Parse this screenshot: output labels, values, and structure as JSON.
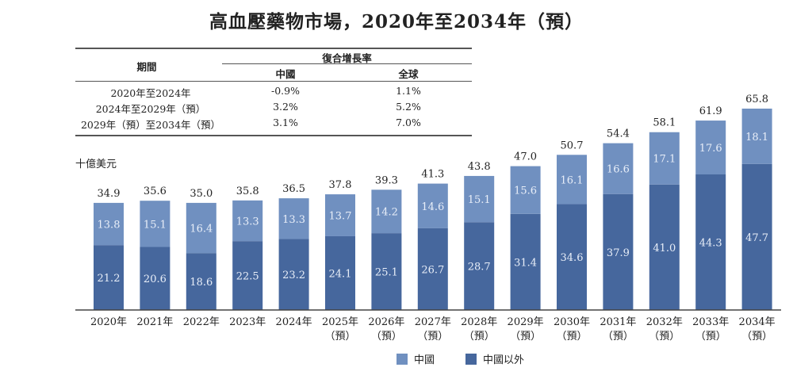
{
  "chart_data": {
    "type": "bar",
    "stacked": true,
    "title": "高血壓藥物市場，2020年至2034年（預）",
    "ylabel": "十億美元",
    "categories": [
      "2020年",
      "2021年",
      "2022年",
      "2023年",
      "2024年",
      "2025年",
      "2026年",
      "2027年",
      "2028年",
      "2029年",
      "2030年",
      "2031年",
      "2032年",
      "2033年",
      "2034年"
    ],
    "forecast_labels": [
      "",
      "",
      "",
      "",
      "",
      "（預）",
      "（預）",
      "（預）",
      "（預）",
      "（預）",
      "（預）",
      "（預）",
      "（預）",
      "（預）",
      "（預）"
    ],
    "series": [
      {
        "name": "中國以外",
        "color": "#46679d",
        "values": [
          21.2,
          20.6,
          18.6,
          22.5,
          23.2,
          24.1,
          25.1,
          26.7,
          28.7,
          31.4,
          34.6,
          37.9,
          41.0,
          44.3,
          47.7
        ]
      },
      {
        "name": "中國",
        "color": "#7090c0",
        "values": [
          13.8,
          15.1,
          16.4,
          13.3,
          13.3,
          13.7,
          14.2,
          14.6,
          15.1,
          15.6,
          16.1,
          16.6,
          17.1,
          17.6,
          18.1
        ]
      }
    ],
    "totals": [
      "34.9",
      "35.6",
      "35.0",
      "35.8",
      "36.5",
      "37.8",
      "39.3",
      "41.3",
      "43.8",
      "47.0",
      "50.7",
      "54.4",
      "58.1",
      "61.9",
      "65.8"
    ],
    "ylim": [
      0,
      70
    ],
    "legend": [
      "中國",
      "中國以外"
    ],
    "legend_position": "bottom"
  },
  "table": {
    "period_header": "期間",
    "cagr_header": "復合增長率",
    "col_china": "中國",
    "col_global": "全球",
    "rows": [
      {
        "period": "2020年至2024年",
        "china": "-0.9%",
        "global": "1.1%"
      },
      {
        "period": "2024年至2029年（預）",
        "china": "3.2%",
        "global": "5.2%"
      },
      {
        "period": "2029年（預）至2034年（預）",
        "china": "3.1%",
        "global": "7.0%"
      }
    ]
  }
}
